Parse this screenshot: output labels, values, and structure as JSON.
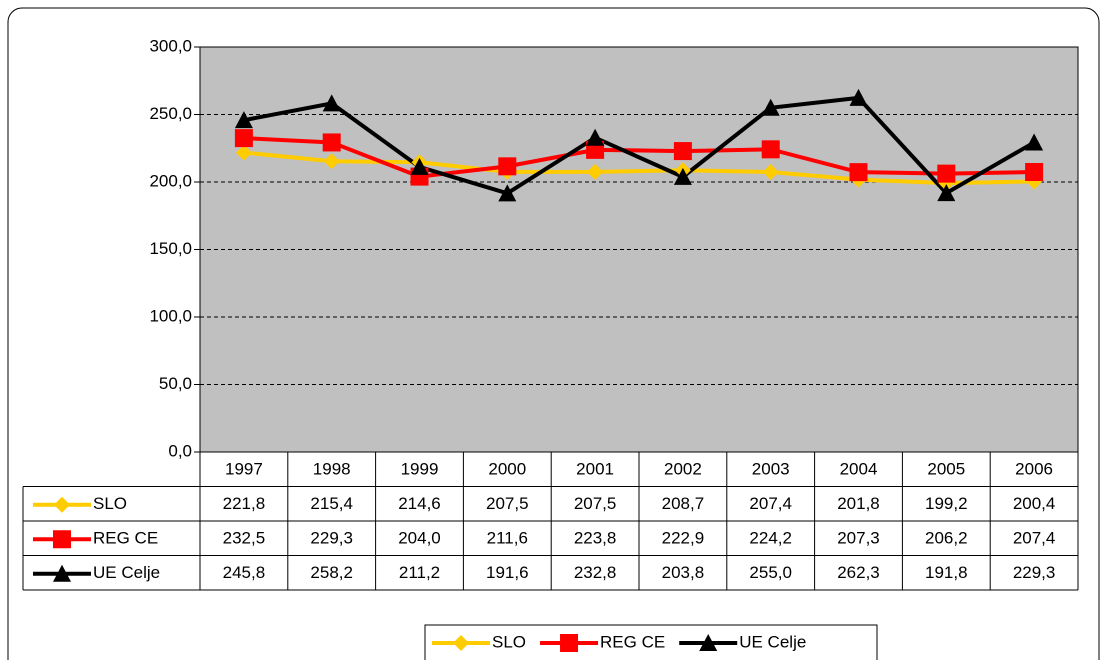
{
  "chart_data": {
    "type": "line",
    "categories": [
      "1997",
      "1998",
      "1999",
      "2000",
      "2001",
      "2002",
      "2003",
      "2004",
      "2005",
      "2006"
    ],
    "series": [
      {
        "name": "SLO",
        "color": "#ffcc00",
        "marker": "diamond",
        "values": [
          221.8,
          215.4,
          214.6,
          207.5,
          207.5,
          208.7,
          207.4,
          201.8,
          199.2,
          200.4
        ],
        "value_labels": [
          "221,8",
          "215,4",
          "214,6",
          "207,5",
          "207,5",
          "208,7",
          "207,4",
          "201,8",
          "199,2",
          "200,4"
        ]
      },
      {
        "name": "REG CE",
        "color": "#ff0000",
        "marker": "square",
        "values": [
          232.5,
          229.3,
          204.0,
          211.6,
          223.8,
          222.9,
          224.2,
          207.3,
          206.2,
          207.4
        ],
        "value_labels": [
          "232,5",
          "229,3",
          "204,0",
          "211,6",
          "223,8",
          "222,9",
          "224,2",
          "207,3",
          "206,2",
          "207,4"
        ]
      },
      {
        "name": "UE Celje",
        "color": "#000000",
        "marker": "triangle",
        "values": [
          245.8,
          258.2,
          211.2,
          191.6,
          232.8,
          203.8,
          255.0,
          262.3,
          191.8,
          229.3
        ],
        "value_labels": [
          "245,8",
          "258,2",
          "211,2",
          "191,6",
          "232,8",
          "203,8",
          "255,0",
          "262,3",
          "191,8",
          "229,3"
        ]
      }
    ],
    "ylim": [
      0,
      300
    ],
    "yticks": [
      {
        "value": 0,
        "label": "0,0"
      },
      {
        "value": 50,
        "label": "50,0"
      },
      {
        "value": 100,
        "label": "100,0"
      },
      {
        "value": 150,
        "label": "150,0"
      },
      {
        "value": 200,
        "label": "200,0"
      },
      {
        "value": 250,
        "label": "250,0"
      },
      {
        "value": 300,
        "label": "300,0"
      }
    ],
    "grid": true,
    "plot_background": "#c0c0c0",
    "legend": "bottom"
  }
}
